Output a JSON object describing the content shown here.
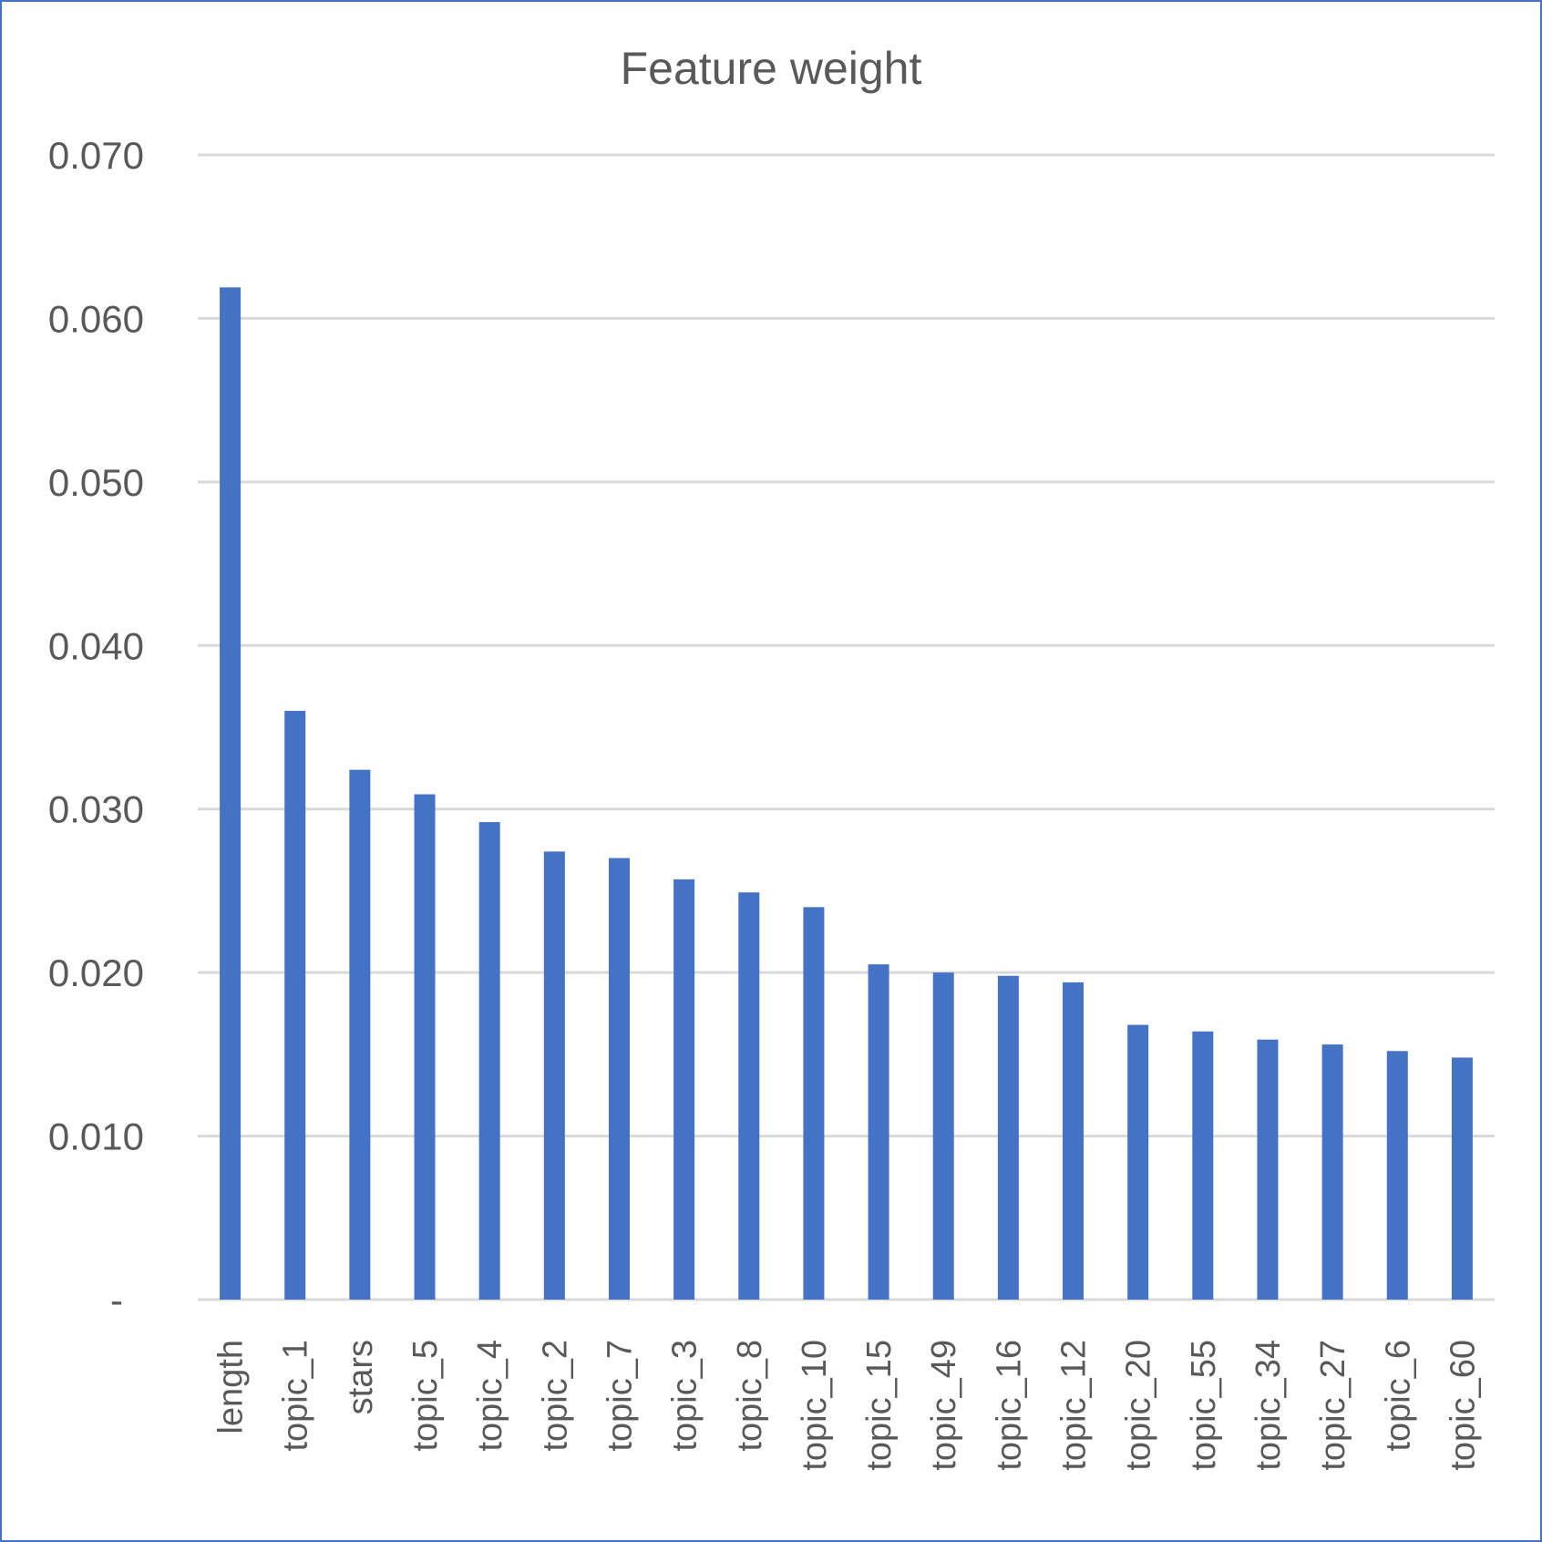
{
  "chart_data": {
    "type": "bar",
    "title": "Feature weight",
    "xlabel": "",
    "ylabel": "",
    "categories": [
      "length",
      "topic_1",
      "stars",
      "topic_5",
      "topic_4",
      "topic_2",
      "topic_7",
      "topic_3",
      "topic_8",
      "topic_10",
      "topic_15",
      "topic_49",
      "topic_16",
      "topic_12",
      "topic_20",
      "topic_55",
      "topic_34",
      "topic_27",
      "topic_6",
      "topic_60"
    ],
    "values": [
      0.0619,
      0.036,
      0.0324,
      0.0309,
      0.0292,
      0.0274,
      0.027,
      0.0257,
      0.0249,
      0.024,
      0.0205,
      0.02,
      0.0198,
      0.0194,
      0.0168,
      0.0164,
      0.0159,
      0.0156,
      0.0152,
      0.0148
    ],
    "ylim": [
      0,
      0.07
    ],
    "yticks": [
      0,
      0.01,
      0.02,
      0.03,
      0.04,
      0.05,
      0.06,
      0.07
    ],
    "ytick_labels": [
      "-",
      "0.010",
      "0.020",
      "0.030",
      "0.040",
      "0.050",
      "0.060",
      "0.070"
    ],
    "grid": true,
    "legend": "none",
    "bar_color": "#4472C4",
    "grid_color": "#D9D9D9",
    "border_color": "#4472C4",
    "text_color": "#595959"
  }
}
